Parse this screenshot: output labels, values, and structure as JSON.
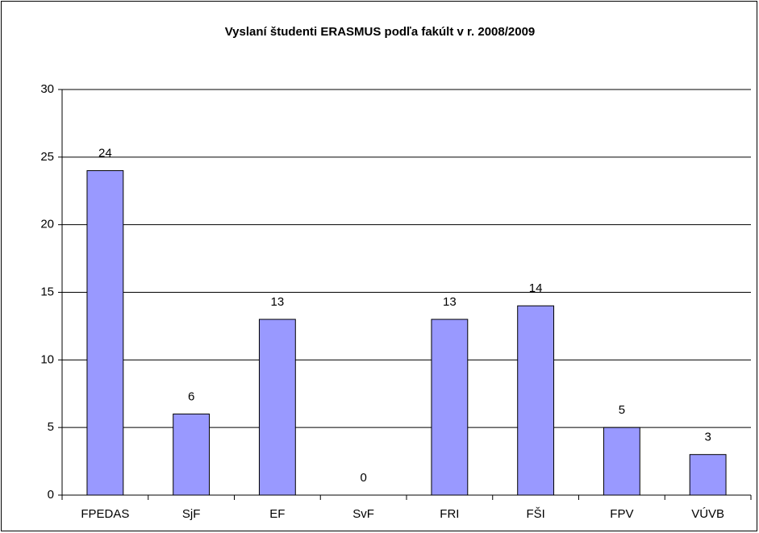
{
  "chart_data": {
    "type": "bar",
    "title": "Vyslaní študenti ERASMUS podľa fakúlt v r. 2008/2009",
    "categories": [
      "FPEDAS",
      "SjF",
      "EF",
      "SvF",
      "FRI",
      "FŠI",
      "FPV",
      "VÚVB"
    ],
    "values": [
      24,
      6,
      13,
      0,
      13,
      14,
      5,
      3
    ],
    "color": "#9999ff",
    "ylim": [
      0,
      30
    ],
    "yticks": [
      0,
      5,
      10,
      15,
      20,
      25,
      30
    ],
    "grid": true
  }
}
